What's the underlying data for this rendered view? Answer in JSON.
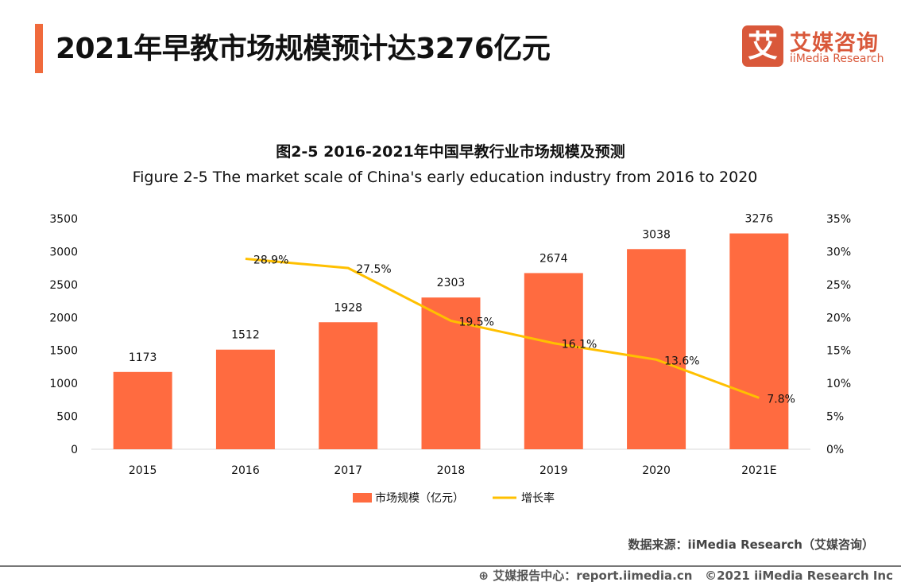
{
  "header": {
    "title": "2021年早教市场规模预计达3276亿元"
  },
  "logo": {
    "mark": "艾",
    "cn": "艾媒咨询",
    "en": "iiMedia Research"
  },
  "footer": {
    "source": "数据来源：iiMedia Research（艾媒咨询）",
    "report": "艾媒报告中心：report.iimedia.cn",
    "copyright": "©2021  iiMedia Research  Inc"
  },
  "colors": {
    "bar": "#ff6b40",
    "line": "#ffc000",
    "accent": "#f06a3c"
  },
  "chart_data": {
    "type": "bar+line",
    "title": "图2-5 2016-2021年中国早教行业市场规模及预测",
    "subtitle": "Figure 2-5 The market scale of China's early education industry from 2016 to 2020",
    "categories": [
      "2015",
      "2016",
      "2017",
      "2018",
      "2019",
      "2020",
      "2021E"
    ],
    "series": [
      {
        "name": "市场规模（亿元）",
        "type": "bar",
        "axis": "left",
        "values": [
          1173,
          1512,
          1928,
          2303,
          2674,
          3038,
          3276
        ],
        "labels": [
          "1173",
          "1512",
          "1928",
          "2303",
          "2674",
          "3038",
          "3276"
        ]
      },
      {
        "name": "增长率",
        "type": "line",
        "axis": "right",
        "values": [
          null,
          28.9,
          27.5,
          19.5,
          16.1,
          13.6,
          7.8
        ],
        "labels": [
          "",
          "28.9%",
          "27.5%",
          "19.5%",
          "16.1%",
          "13.6%",
          "7.8%"
        ]
      }
    ],
    "y_left": {
      "ylim": [
        0,
        3500
      ],
      "ticks": [
        "0",
        "500",
        "1000",
        "1500",
        "2000",
        "2500",
        "3000",
        "3500"
      ]
    },
    "y_right": {
      "ylim": [
        0,
        35
      ],
      "ticks": [
        "0%",
        "5%",
        "10%",
        "15%",
        "20%",
        "25%",
        "30%",
        "35%"
      ]
    },
    "grid": false,
    "legend": "bottom"
  }
}
